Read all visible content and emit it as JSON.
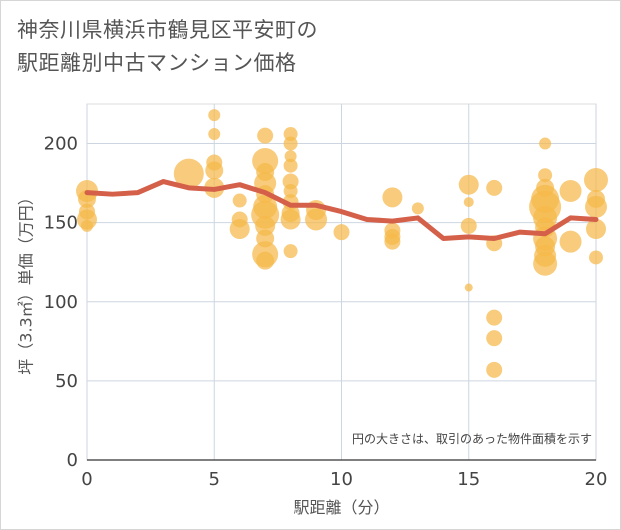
{
  "title_lines": [
    "神奈川県横浜市鶴見区平安町の",
    "駅距離別中古マンション価格"
  ],
  "chart_data": {
    "type": "scatter",
    "xlabel": "駅距離（分）",
    "ylabel": "坪（3.3㎡）単価（万円）",
    "xlim": [
      0,
      20
    ],
    "ylim": [
      0,
      225
    ],
    "x_ticks": [
      0,
      5,
      10,
      15,
      20
    ],
    "y_ticks": [
      0,
      50,
      100,
      150,
      200
    ],
    "grid": true,
    "annotation": "円の大きさは、取引のあった物件面積を示す",
    "colors": {
      "bubble": "#f5b84a",
      "line": "#d4604a"
    },
    "bubbles": [
      {
        "x": 0,
        "y": 170,
        "s": 11
      },
      {
        "x": 0,
        "y": 165,
        "s": 9
      },
      {
        "x": 0,
        "y": 157,
        "s": 8
      },
      {
        "x": 0,
        "y": 152,
        "s": 10
      },
      {
        "x": 0,
        "y": 148,
        "s": 6
      },
      {
        "x": 4,
        "y": 181,
        "s": 15
      },
      {
        "x": 5,
        "y": 218,
        "s": 6
      },
      {
        "x": 5,
        "y": 206,
        "s": 6
      },
      {
        "x": 5,
        "y": 188,
        "s": 8
      },
      {
        "x": 5,
        "y": 183,
        "s": 9
      },
      {
        "x": 5,
        "y": 172,
        "s": 10
      },
      {
        "x": 6,
        "y": 164,
        "s": 7
      },
      {
        "x": 6,
        "y": 152,
        "s": 8
      },
      {
        "x": 6,
        "y": 146,
        "s": 10
      },
      {
        "x": 7,
        "y": 205,
        "s": 8
      },
      {
        "x": 7,
        "y": 189,
        "s": 13
      },
      {
        "x": 7,
        "y": 182,
        "s": 9
      },
      {
        "x": 7,
        "y": 175,
        "s": 11
      },
      {
        "x": 7,
        "y": 168,
        "s": 9
      },
      {
        "x": 7,
        "y": 160,
        "s": 12
      },
      {
        "x": 7,
        "y": 155,
        "s": 14
      },
      {
        "x": 7,
        "y": 148,
        "s": 10
      },
      {
        "x": 7,
        "y": 140,
        "s": 9
      },
      {
        "x": 7,
        "y": 130,
        "s": 13
      },
      {
        "x": 7,
        "y": 126,
        "s": 9
      },
      {
        "x": 8,
        "y": 206,
        "s": 7
      },
      {
        "x": 8,
        "y": 200,
        "s": 7
      },
      {
        "x": 8,
        "y": 192,
        "s": 6
      },
      {
        "x": 8,
        "y": 186,
        "s": 7
      },
      {
        "x": 8,
        "y": 176,
        "s": 8
      },
      {
        "x": 8,
        "y": 170,
        "s": 7
      },
      {
        "x": 8,
        "y": 163,
        "s": 8
      },
      {
        "x": 8,
        "y": 156,
        "s": 9
      },
      {
        "x": 8,
        "y": 152,
        "s": 10
      },
      {
        "x": 8,
        "y": 132,
        "s": 7
      },
      {
        "x": 9,
        "y": 158,
        "s": 10
      },
      {
        "x": 9,
        "y": 152,
        "s": 11
      },
      {
        "x": 10,
        "y": 144,
        "s": 8
      },
      {
        "x": 12,
        "y": 166,
        "s": 10
      },
      {
        "x": 12,
        "y": 145,
        "s": 8
      },
      {
        "x": 12,
        "y": 141,
        "s": 8
      },
      {
        "x": 12,
        "y": 138,
        "s": 8
      },
      {
        "x": 13,
        "y": 159,
        "s": 6
      },
      {
        "x": 15,
        "y": 174,
        "s": 10
      },
      {
        "x": 15,
        "y": 163,
        "s": 5
      },
      {
        "x": 15,
        "y": 148,
        "s": 8
      },
      {
        "x": 15,
        "y": 109,
        "s": 4
      },
      {
        "x": 16,
        "y": 172,
        "s": 8
      },
      {
        "x": 16,
        "y": 137,
        "s": 8
      },
      {
        "x": 16,
        "y": 90,
        "s": 8
      },
      {
        "x": 16,
        "y": 77,
        "s": 8
      },
      {
        "x": 16,
        "y": 57,
        "s": 8
      },
      {
        "x": 18,
        "y": 200,
        "s": 6
      },
      {
        "x": 18,
        "y": 180,
        "s": 7
      },
      {
        "x": 18,
        "y": 172,
        "s": 9
      },
      {
        "x": 18,
        "y": 165,
        "s": 14
      },
      {
        "x": 18,
        "y": 160,
        "s": 16
      },
      {
        "x": 18,
        "y": 153,
        "s": 12
      },
      {
        "x": 18,
        "y": 147,
        "s": 10
      },
      {
        "x": 18,
        "y": 140,
        "s": 12
      },
      {
        "x": 18,
        "y": 135,
        "s": 10
      },
      {
        "x": 18,
        "y": 129,
        "s": 11
      },
      {
        "x": 18,
        "y": 124,
        "s": 12
      },
      {
        "x": 19,
        "y": 170,
        "s": 11
      },
      {
        "x": 19,
        "y": 138,
        "s": 11
      },
      {
        "x": 20,
        "y": 177,
        "s": 12
      },
      {
        "x": 20,
        "y": 165,
        "s": 9
      },
      {
        "x": 20,
        "y": 160,
        "s": 11
      },
      {
        "x": 20,
        "y": 146,
        "s": 10
      },
      {
        "x": 20,
        "y": 128,
        "s": 7
      }
    ],
    "trend": {
      "x": [
        0,
        1,
        2,
        3,
        4,
        5,
        6,
        7,
        8,
        9,
        10,
        11,
        12,
        13,
        14,
        15,
        16,
        17,
        18,
        19,
        20
      ],
      "y": [
        169,
        168,
        169,
        176,
        172,
        171,
        174,
        169,
        161,
        161,
        157,
        152,
        151,
        153,
        140,
        141,
        140,
        144,
        143,
        153,
        152
      ]
    }
  }
}
